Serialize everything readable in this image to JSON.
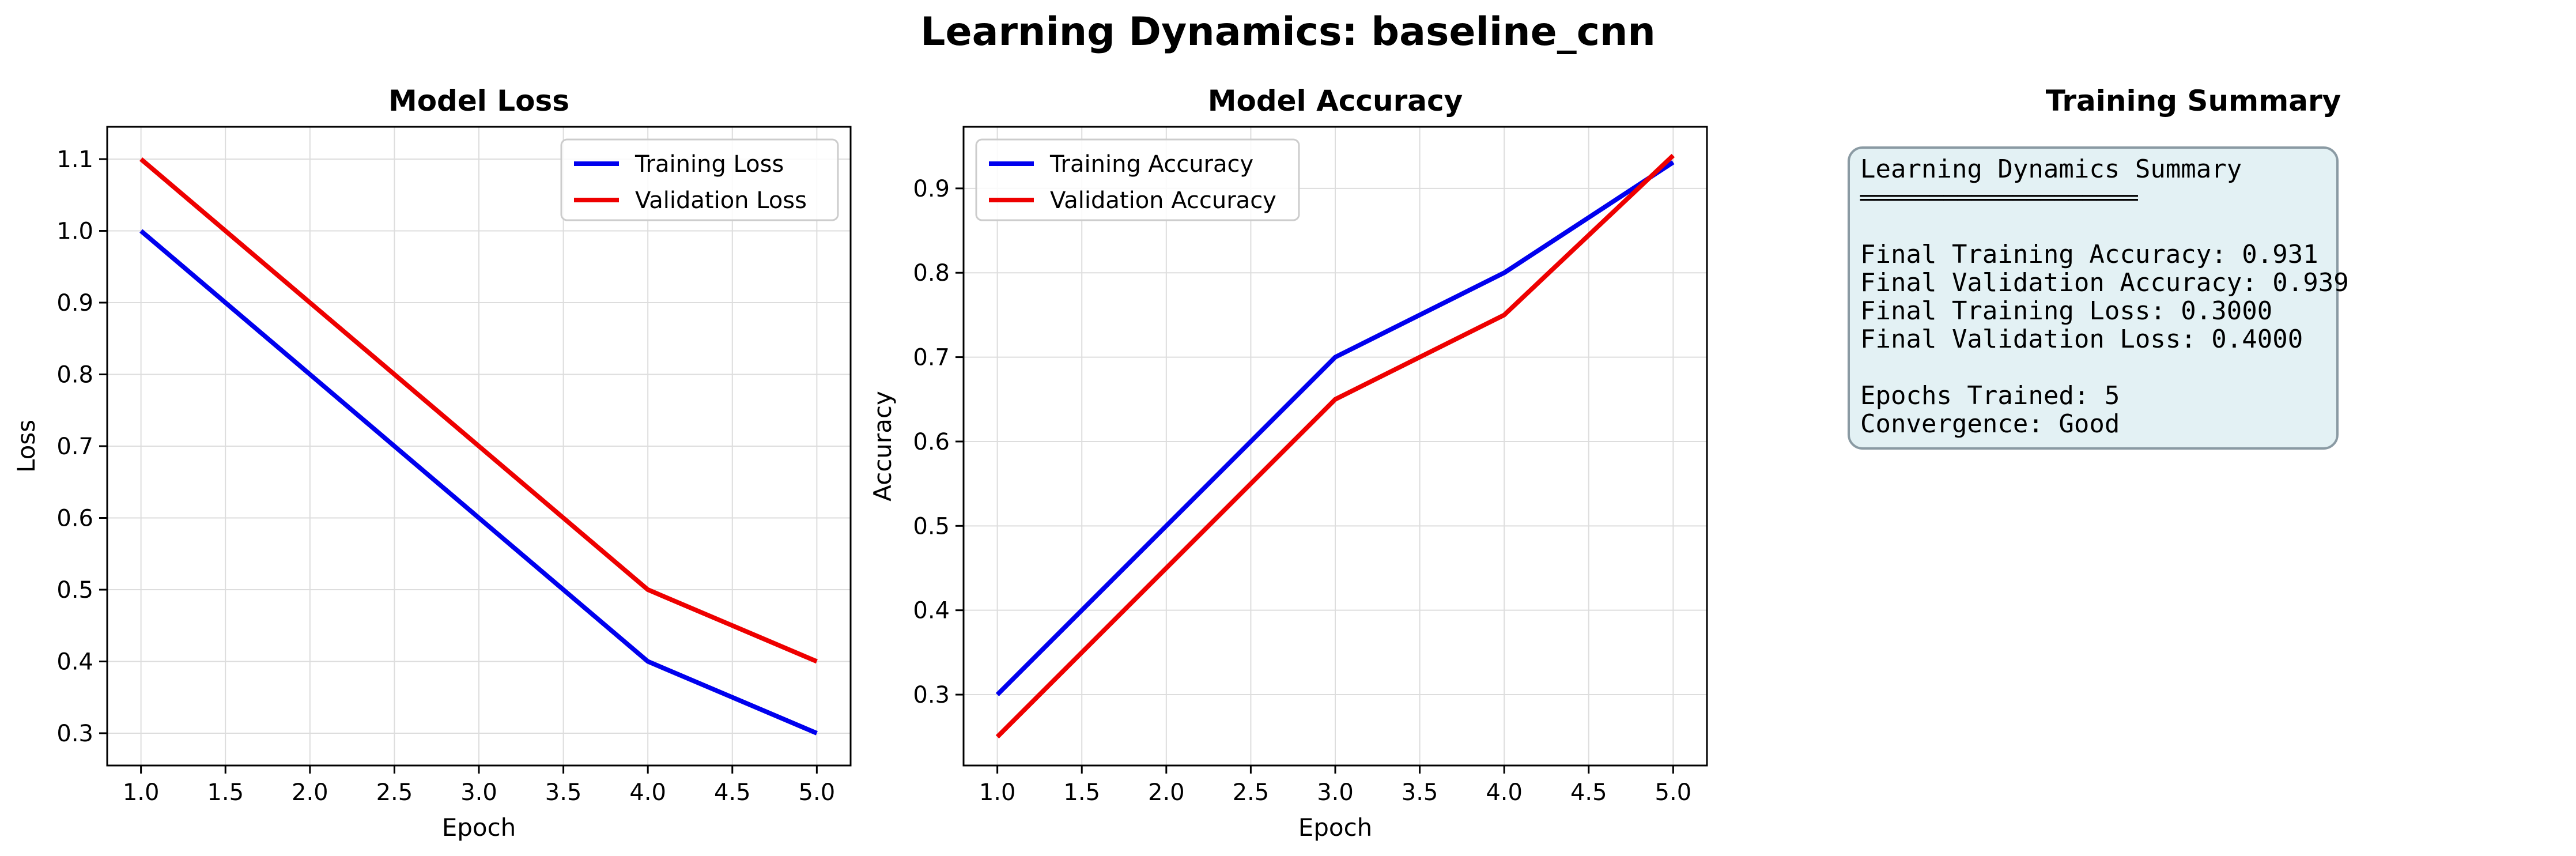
{
  "figure": {
    "suptitle": "Learning Dynamics: baseline_cnn"
  },
  "chart_data": [
    {
      "type": "line",
      "title": "Model Loss",
      "xlabel": "Epoch",
      "ylabel": "Loss",
      "x": [
        1,
        2,
        3,
        4,
        5
      ],
      "series": [
        {
          "name": "Training Loss",
          "color": "#0000ee",
          "values": [
            1.0,
            0.8,
            0.6,
            0.4,
            0.3
          ]
        },
        {
          "name": "Validation Loss",
          "color": "#ee0000",
          "values": [
            1.1,
            0.9,
            0.7,
            0.5,
            0.4
          ]
        }
      ],
      "xlim": [
        0.8,
        5.2
      ],
      "ylim": [
        0.255,
        1.145
      ],
      "xticks": [
        1.0,
        1.5,
        2.0,
        2.5,
        3.0,
        3.5,
        4.0,
        4.5,
        5.0
      ],
      "xtick_labels": [
        "1.0",
        "1.5",
        "2.0",
        "2.5",
        "3.0",
        "3.5",
        "4.0",
        "4.5",
        "5.0"
      ],
      "yticks": [
        0.3,
        0.4,
        0.5,
        0.6,
        0.7,
        0.8,
        0.9,
        1.0,
        1.1
      ],
      "ytick_labels": [
        "0.3",
        "0.4",
        "0.5",
        "0.6",
        "0.7",
        "0.8",
        "0.9",
        "1.0",
        "1.1"
      ],
      "grid": true,
      "legend": "top-right"
    },
    {
      "type": "line",
      "title": "Model Accuracy",
      "xlabel": "Epoch",
      "ylabel": "Accuracy",
      "x": [
        1,
        2,
        3,
        4,
        5
      ],
      "series": [
        {
          "name": "Training Accuracy",
          "color": "#0000ee",
          "values": [
            0.3,
            0.5,
            0.7,
            0.8,
            0.931
          ]
        },
        {
          "name": "Validation Accuracy",
          "color": "#ee0000",
          "values": [
            0.25,
            0.45,
            0.65,
            0.75,
            0.939
          ]
        }
      ],
      "xlim": [
        0.8,
        5.2
      ],
      "ylim": [
        0.216,
        0.973
      ],
      "xticks": [
        1.0,
        1.5,
        2.0,
        2.5,
        3.0,
        3.5,
        4.0,
        4.5,
        5.0
      ],
      "xtick_labels": [
        "1.0",
        "1.5",
        "2.0",
        "2.5",
        "3.0",
        "3.5",
        "4.0",
        "4.5",
        "5.0"
      ],
      "yticks": [
        0.3,
        0.4,
        0.5,
        0.6,
        0.7,
        0.8,
        0.9
      ],
      "ytick_labels": [
        "0.3",
        "0.4",
        "0.5",
        "0.6",
        "0.7",
        "0.8",
        "0.9"
      ],
      "grid": true,
      "legend": "top-left"
    }
  ],
  "summary": {
    "title": "Training Summary",
    "heading": "Learning Dynamics Summary",
    "rule": "════════════════════",
    "lines": [
      "Final Training Accuracy: 0.931",
      "Final Validation Accuracy: 0.939",
      "Final Training Loss: 0.3000",
      "Final Validation Loss: 0.4000",
      "",
      "Epochs Trained: 5",
      "Convergence: Good"
    ],
    "box_fill": "#e3f1f4",
    "box_stroke": "#8a9aa3"
  }
}
